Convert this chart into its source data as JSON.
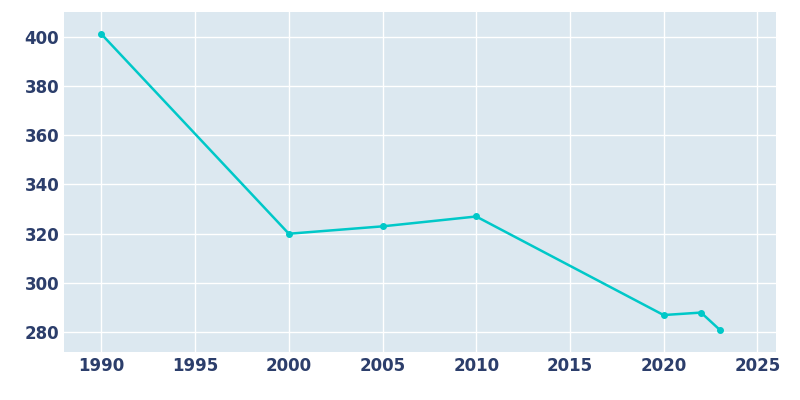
{
  "years": [
    1990,
    2000,
    2005,
    2010,
    2020,
    2022,
    2023
  ],
  "population": [
    401,
    320,
    323,
    327,
    287,
    288,
    281
  ],
  "line_color": "#00C8C8",
  "marker": "o",
  "marker_size": 4,
  "line_width": 1.8,
  "axes_background_color": "#dce8f0",
  "figure_background_color": "#ffffff",
  "grid_color": "#ffffff",
  "grid_linewidth": 1.0,
  "xlim": [
    1988,
    2026
  ],
  "ylim": [
    272,
    410
  ],
  "xticks": [
    1990,
    1995,
    2000,
    2005,
    2010,
    2015,
    2020,
    2025
  ],
  "yticks": [
    280,
    300,
    320,
    340,
    360,
    380,
    400
  ],
  "tick_label_color": "#2c3e6b",
  "tick_fontsize": 12
}
